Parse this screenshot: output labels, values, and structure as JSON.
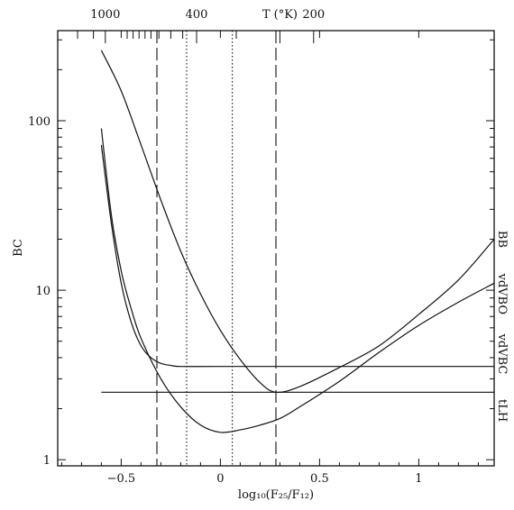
{
  "chart_data": {
    "type": "line",
    "xlabel": "log₁₀(F₂₅/F₁₂)",
    "ylabel": "BC",
    "top_axis_label": "T (°K)",
    "x_log_scale": false,
    "y_log_scale": true,
    "xlim": [
      -0.82,
      1.38
    ],
    "ylim": [
      0.92,
      340
    ],
    "x_ticks": [
      {
        "v": -0.5,
        "label": "−0.5"
      },
      {
        "v": 0,
        "label": "0"
      },
      {
        "v": 0.5,
        "label": "0.5"
      },
      {
        "v": 1,
        "label": "1"
      }
    ],
    "y_ticks": [
      {
        "v": 1,
        "label": "1"
      },
      {
        "v": 10,
        "label": "10"
      },
      {
        "v": 100,
        "label": "100"
      }
    ],
    "top_ticks": [
      {
        "x": -0.72,
        "major": false
      },
      {
        "x": -0.64,
        "major": false
      },
      {
        "x": -0.58,
        "major": true,
        "label": "1000"
      },
      {
        "x": -0.47,
        "major": false
      },
      {
        "x": -0.44,
        "major": false
      },
      {
        "x": -0.41,
        "major": false
      },
      {
        "x": -0.38,
        "major": false
      },
      {
        "x": -0.35,
        "major": false
      },
      {
        "x": -0.31,
        "major": false
      },
      {
        "x": -0.25,
        "major": false
      },
      {
        "x": -0.19,
        "major": false
      },
      {
        "x": -0.12,
        "major": true,
        "label": "400"
      },
      {
        "x": 0.08,
        "major": false
      },
      {
        "x": 0.3,
        "major": true,
        "label": "T (°K)"
      },
      {
        "x": 0.47,
        "major": true,
        "label": "200"
      }
    ],
    "vlines": [
      {
        "x": -0.32,
        "style": "dashed"
      },
      {
        "x": -0.17,
        "style": "dotted"
      },
      {
        "x": 0.06,
        "style": "dotted"
      },
      {
        "x": 0.28,
        "style": "dashed"
      }
    ],
    "series": [
      {
        "name": "BB",
        "x": [
          -0.6,
          -0.5,
          -0.4,
          -0.3,
          -0.2,
          -0.1,
          0.0,
          0.1,
          0.2,
          0.28,
          0.4,
          0.6,
          0.8,
          1.0,
          1.2,
          1.38
        ],
        "y": [
          260,
          150,
          72,
          34,
          17,
          9.5,
          5.8,
          3.9,
          2.85,
          2.5,
          2.7,
          3.5,
          4.7,
          7.2,
          11.5,
          20
        ]
      },
      {
        "name": "vdVBO",
        "x": [
          -0.6,
          -0.55,
          -0.5,
          -0.45,
          -0.4,
          -0.3,
          -0.2,
          -0.1,
          0.0,
          0.1,
          0.2,
          0.3,
          0.4,
          0.6,
          0.8,
          1.0,
          1.2,
          1.38
        ],
        "y": [
          90,
          28,
          13,
          7.8,
          5.2,
          3.0,
          2.05,
          1.6,
          1.45,
          1.5,
          1.6,
          1.75,
          2.05,
          2.9,
          4.3,
          6.2,
          8.5,
          11
        ]
      },
      {
        "name": "vdVBC",
        "x": [
          -0.6,
          -0.55,
          -0.5,
          -0.45,
          -0.4,
          -0.35,
          -0.3,
          -0.25,
          -0.2,
          0.0,
          0.5,
          1.0,
          1.38
        ],
        "y": [
          72,
          25,
          11,
          6.5,
          4.7,
          4.0,
          3.7,
          3.6,
          3.55,
          3.55,
          3.55,
          3.55,
          3.55
        ]
      },
      {
        "name": "tLH",
        "x": [
          -0.6,
          1.38
        ],
        "y": [
          2.5,
          2.5
        ]
      }
    ],
    "curve_labels": [
      {
        "name": "BB",
        "y": 20
      },
      {
        "name": "vdVBO",
        "y": 9.5
      },
      {
        "name": "vdVBC",
        "y": 4.2
      },
      {
        "name": "tLH",
        "y": 1.95
      }
    ]
  }
}
